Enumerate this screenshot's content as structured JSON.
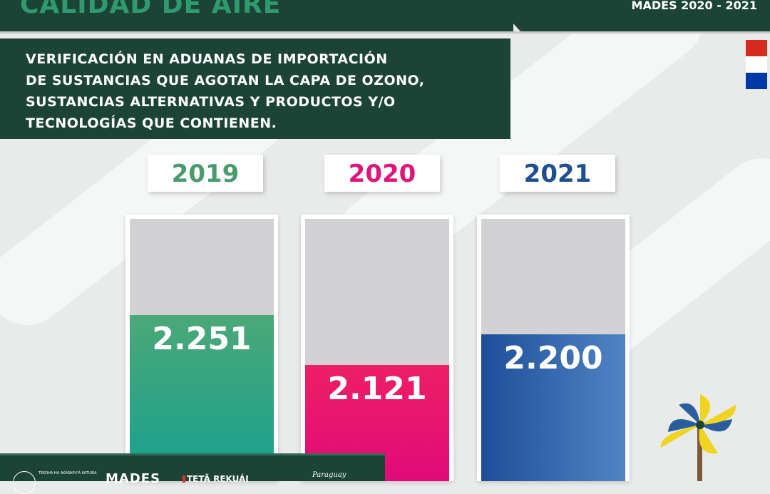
{
  "header": {
    "title": "CALIDAD DE AIRE",
    "period": "MADES 2020 - 2021"
  },
  "subtitle": {
    "lines": [
      "VERIFICACIÓN EN ADUANAS DE IMPORTACIÓN",
      "DE SUSTANCIAS QUE AGOTAN LA CAPA DE OZONO,",
      "SUSTANCIAS ALTERNATIVAS Y PRODUCTOS Y/O",
      "TECNOLOGÍAS QUE CONTIENEN."
    ]
  },
  "chart_data": {
    "type": "bar",
    "title": "",
    "categories": [
      "2019",
      "2020",
      "2021"
    ],
    "values": [
      2251,
      2121,
      2200
    ],
    "labels": [
      "2.251",
      "2.121",
      "2.200"
    ],
    "colors": {
      "2019": {
        "year_text": "#4a9a6e",
        "bar_top": "#4ba877",
        "bar_bottom": "#17a091"
      },
      "2020": {
        "year_text": "#e0157a",
        "bar_top": "#ec1f64",
        "bar_bottom": "#e00b7a"
      },
      "2021": {
        "year_text": "#1e4f93",
        "bar_top": "#1e4e98",
        "bar_bottom": "#4f84c4"
      }
    }
  },
  "footer": {
    "small_text": "TEKOHA HA AKÃRAPU'Ã KATUIRA",
    "org_logo": "MADES",
    "slogan": "TETÃ REKUÁI",
    "country_logo": "Paraguay"
  },
  "flag_colors": [
    "#d52b1e",
    "#ffffff",
    "#0038a8"
  ],
  "icons": [
    "pinwheel-icon",
    "seal-icon"
  ]
}
